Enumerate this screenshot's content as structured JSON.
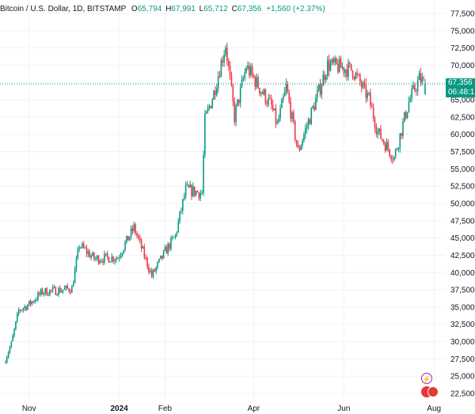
{
  "legend": {
    "symbol": "Bitcoin / U.S. Dollar, 1D, BITSTAMP",
    "open_label": "O",
    "open": "65,794",
    "high_label": "H",
    "high": "67,991",
    "low_label": "L",
    "low": "65,712",
    "close_label": "C",
    "close": "67,356",
    "change": "+1,560 (+2.37%)"
  },
  "last_price": {
    "price": "67,356",
    "countdown": "06:48:1"
  },
  "badges": {
    "bolt": "⚡",
    "flag": "🇺🇸"
  },
  "colors": {
    "up": "#089981",
    "down": "#f23645",
    "grid": "#f0f3fa",
    "text": "#131722"
  },
  "chart_data": {
    "type": "candlestick",
    "title": "Bitcoin / U.S. Dollar, 1D, BITSTAMP",
    "x_tick_labels": [
      "Nov",
      "2024",
      "Feb",
      "Apr",
      "Jun",
      "Aug"
    ],
    "y_tick_labels": [
      "77,500",
      "75,000",
      "72,500",
      "70,000",
      "67,500",
      "65,000",
      "62,500",
      "60,000",
      "57,500",
      "55,000",
      "52,500",
      "50,000",
      "47,500",
      "45,000",
      "42,500",
      "40,000",
      "37,500",
      "35,000",
      "32,500",
      "30,000",
      "27,500",
      "25,000",
      "22,500"
    ],
    "ylim": [
      21500,
      78300
    ],
    "grid": true,
    "last_close": 67356,
    "approx_close_path": [
      [
        "2023-10-15",
        26900
      ],
      [
        "2023-10-20",
        29700
      ],
      [
        "2023-10-25",
        34500
      ],
      [
        "2023-11-01",
        35400
      ],
      [
        "2023-11-10",
        37200
      ],
      [
        "2023-11-20",
        37400
      ],
      [
        "2023-11-30",
        37700
      ],
      [
        "2023-12-05",
        44000
      ],
      [
        "2023-12-15",
        42000
      ],
      [
        "2023-12-31",
        42200
      ],
      [
        "2024-01-11",
        46500
      ],
      [
        "2024-01-23",
        39500
      ],
      [
        "2024-02-01",
        43000
      ],
      [
        "2024-02-08",
        45300
      ],
      [
        "2024-02-15",
        52000
      ],
      [
        "2024-02-26",
        51500
      ],
      [
        "2024-02-28",
        62000
      ],
      [
        "2024-03-05",
        66000
      ],
      [
        "2024-03-13",
        73000
      ],
      [
        "2024-03-19",
        62500
      ],
      [
        "2024-03-27",
        69800
      ],
      [
        "2024-04-13",
        64000
      ],
      [
        "2024-04-17",
        61300
      ],
      [
        "2024-04-23",
        66800
      ],
      [
        "2024-05-01",
        57500
      ],
      [
        "2024-05-15",
        66200
      ],
      [
        "2024-05-21",
        70100
      ],
      [
        "2024-06-07",
        69300
      ],
      [
        "2024-06-18",
        65100
      ],
      [
        "2024-06-24",
        60300
      ],
      [
        "2024-07-05",
        56600
      ],
      [
        "2024-07-15",
        64700
      ],
      [
        "2024-07-22",
        68000
      ],
      [
        "2024-07-26",
        67356
      ]
    ]
  }
}
